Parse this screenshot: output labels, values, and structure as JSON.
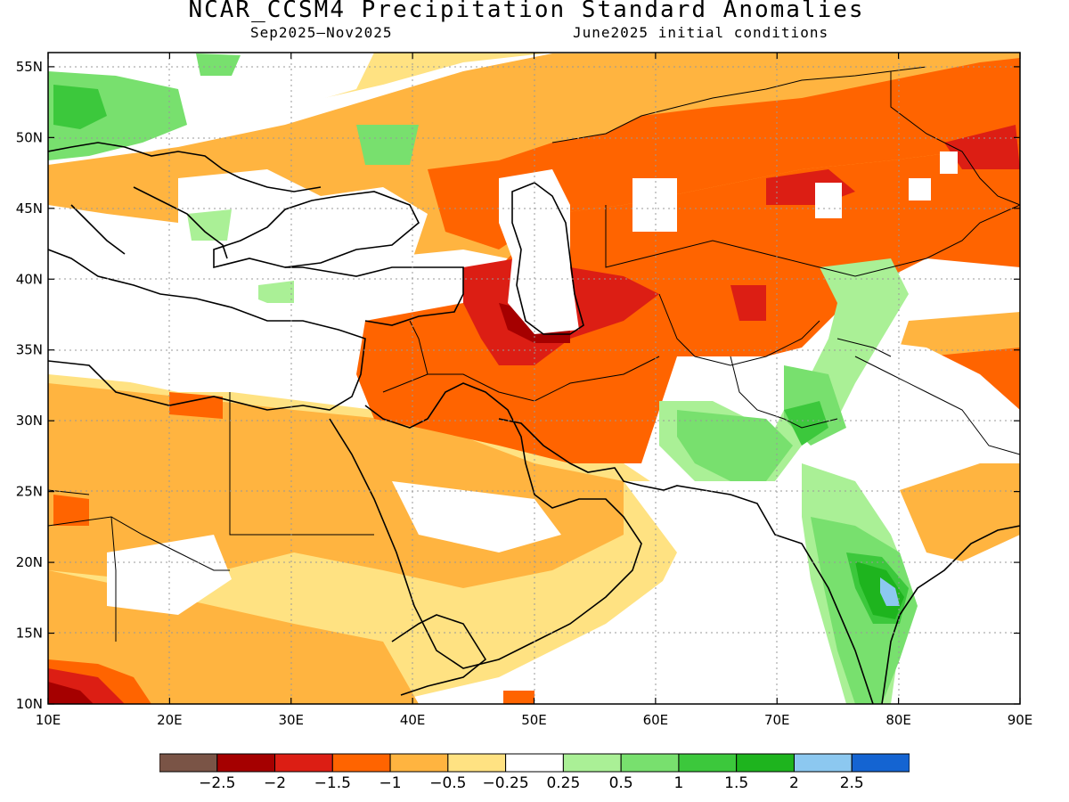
{
  "title": "NCAR_CCSM4 Precipitation Standard Anomalies",
  "subtitle_left": "Sep2025–Nov2025",
  "subtitle_right": "June2025 initial conditions",
  "axes": {
    "lon_labels": [
      "10E",
      "20E",
      "30E",
      "40E",
      "50E",
      "60E",
      "70E",
      "80E",
      "90E"
    ],
    "lat_labels": [
      "55N",
      "50N",
      "45N",
      "40N",
      "35N",
      "30N",
      "25N",
      "20N",
      "15N",
      "10N"
    ],
    "lon_range": [
      10,
      90
    ],
    "lat_range": [
      10,
      56
    ],
    "grid": "dotted"
  },
  "legend": {
    "colors": [
      "#7a5446",
      "#a50000",
      "#dc1e14",
      "#ff6400",
      "#ffb440",
      "#ffe282",
      "#ffffff",
      "#aaf096",
      "#78e06e",
      "#3cc83c",
      "#1eb41e",
      "#8cc8f0",
      "#1464d2"
    ],
    "labels": [
      "-2.5",
      "-2",
      "-1.5",
      "-1",
      "-0.5",
      "-0.25",
      "0.25",
      "0.5",
      "1",
      "1.5",
      "2",
      "2.5"
    ]
  },
  "chart_data": {
    "type": "heatmap",
    "title": "NCAR_CCSM4 Precipitation Standard Anomalies",
    "period": "Sep2025–Nov2025",
    "initial_conditions": "June2025 initial conditions",
    "xlabel": "",
    "ylabel": "",
    "xlim": [
      10,
      90
    ],
    "ylim": [
      10,
      56
    ],
    "color_scale_breaks": [
      -2.5,
      -2,
      -1.5,
      -1,
      -0.5,
      -0.25,
      0.25,
      0.5,
      1,
      1.5,
      2,
      2.5
    ]
  }
}
